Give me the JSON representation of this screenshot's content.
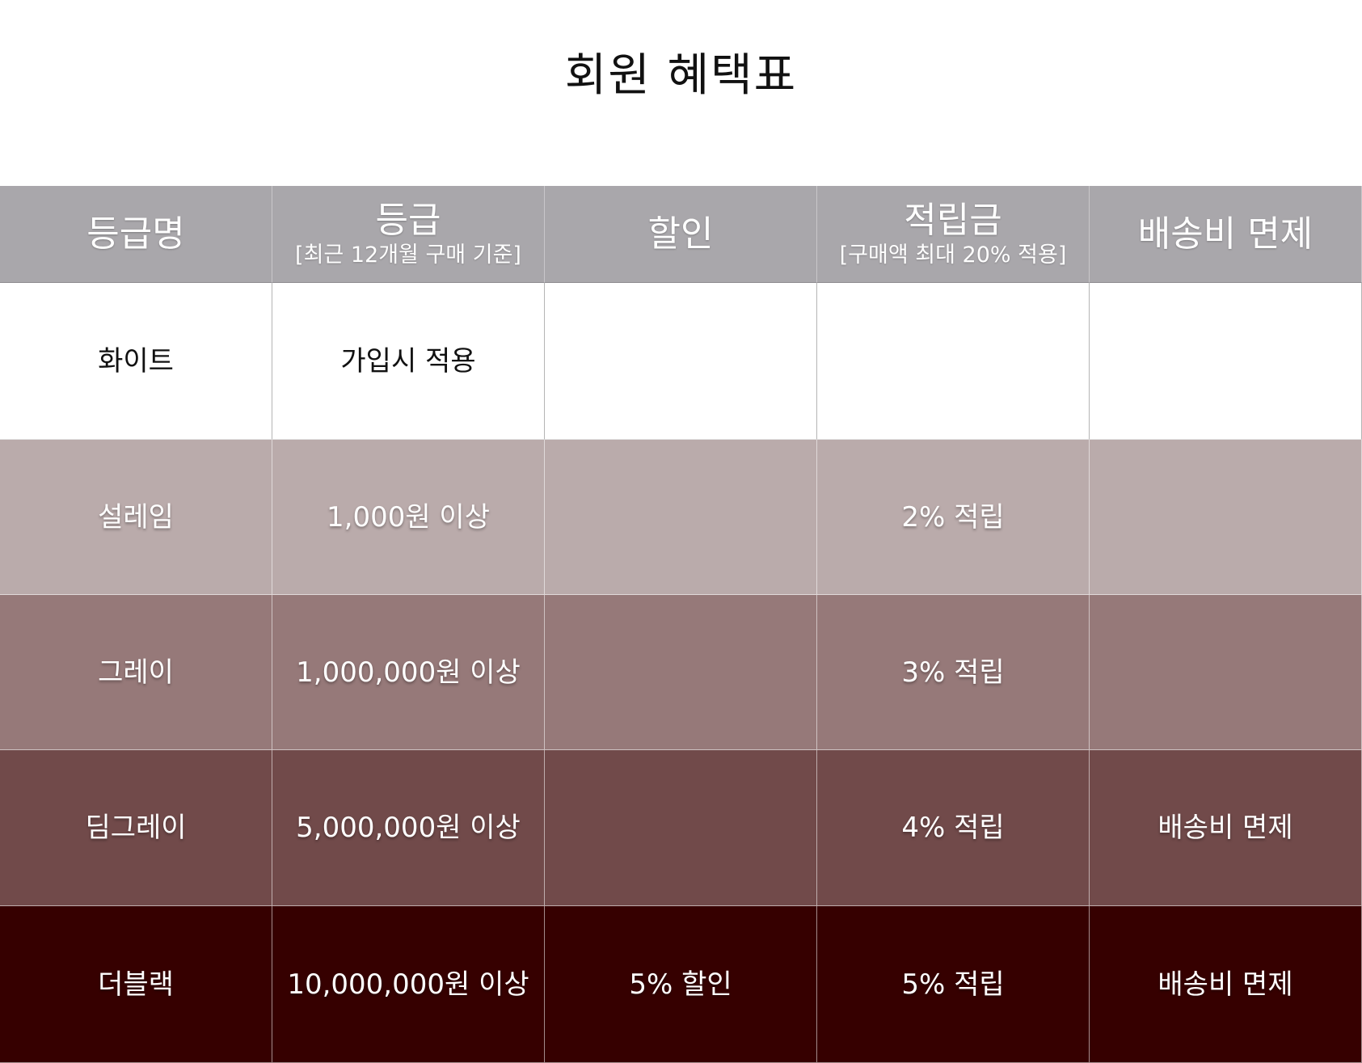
{
  "title": "회원 혜택표",
  "header": {
    "col1": {
      "main": "등급명"
    },
    "col2": {
      "main": "등급",
      "sub": "[최근 12개월 구매 기준]"
    },
    "col3": {
      "main": "할인"
    },
    "col4": {
      "main": "적립금",
      "sub": "[구매액 최대 20% 적용]"
    },
    "col5": {
      "main": "배송비 면제"
    }
  },
  "rows": [
    {
      "name": "화이트",
      "tier": "가입시 적용",
      "discount": "",
      "points": "",
      "shipping": "",
      "color": "#ffffff"
    },
    {
      "name": "설레임",
      "tier": "1,000원 이상",
      "discount": "",
      "points": "2% 적립",
      "shipping": "",
      "color": "#baabab"
    },
    {
      "name": "그레이",
      "tier": "1,000,000원 이상",
      "discount": "",
      "points": "3% 적립",
      "shipping": "",
      "color": "#967979"
    },
    {
      "name": "딤그레이",
      "tier": "5,000,000원 이상",
      "discount": "",
      "points": "4% 적립",
      "shipping": "배송비 면제",
      "color": "#714a4a"
    },
    {
      "name": "더블랙",
      "tier": "10,000,000원 이상",
      "discount": "5% 할인",
      "points": "5% 적립",
      "shipping": "배송비 면제",
      "color": "#360000"
    }
  ],
  "colors": {
    "header_bg": "#a9a7ab"
  }
}
